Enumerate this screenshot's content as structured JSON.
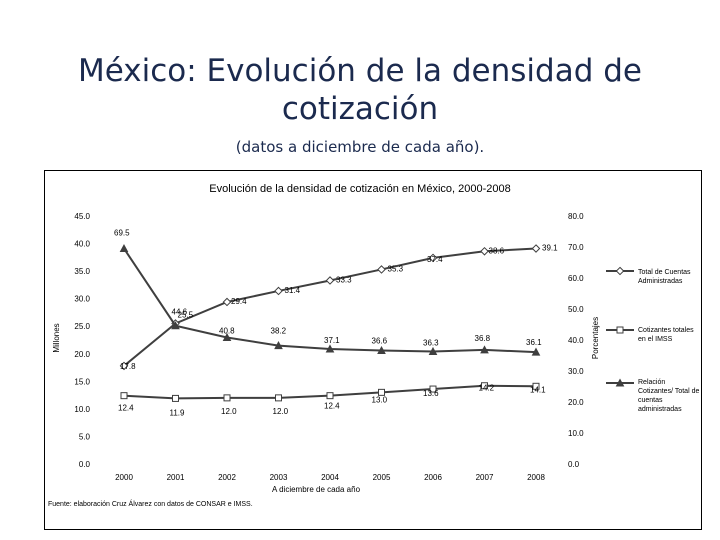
{
  "slide": {
    "title": "México: Evolución de la densidad de cotización",
    "subtitle": "(datos a diciembre de cada año)."
  },
  "chart_data": {
    "type": "line",
    "title": "Evolución de la densidad de cotización en México, 2000-2008",
    "xlabel": "A diciembre de cada año",
    "ylabel_left": "Millones",
    "ylabel_right": "Porcentajes",
    "categories": [
      "2000",
      "2001",
      "2002",
      "2003",
      "2004",
      "2005",
      "2006",
      "2007",
      "2008"
    ],
    "y_left_ticks": [
      "0.0",
      "5.0",
      "10.0",
      "15.0",
      "20.0",
      "25.0",
      "30.0",
      "35.0",
      "40.0",
      "45.0"
    ],
    "y_right_ticks": [
      "0.0",
      "10.0",
      "20.0",
      "30.0",
      "40.0",
      "50.0",
      "60.0",
      "70.0",
      "80.0"
    ],
    "ylim_left": [
      0,
      45
    ],
    "ylim_right": [
      0,
      80
    ],
    "series": [
      {
        "name": "Total de Cuentas Administradas",
        "axis": "left",
        "marker": "diamond",
        "values": [
          17.8,
          25.5,
          29.4,
          31.4,
          33.3,
          35.3,
          37.4,
          38.6,
          39.1
        ],
        "labels": [
          "17.8",
          "25.5",
          "29.4",
          "31.4",
          "33.3",
          "35.3",
          "37.4",
          "38.6",
          "39.1"
        ]
      },
      {
        "name": "Cotizantes totales en el IMSS",
        "axis": "left",
        "marker": "square",
        "values": [
          12.4,
          11.9,
          12.0,
          12.0,
          12.4,
          13.0,
          13.6,
          14.2,
          14.1
        ],
        "labels": [
          "12.4",
          "11.9",
          "12.0",
          "12.0",
          "12.4",
          "13.0",
          "13.6",
          "14.2",
          "14.1"
        ]
      },
      {
        "name": "Relación Cotizantes/ Total de cuentas administradas",
        "axis": "right",
        "marker": "triangle",
        "values": [
          69.5,
          44.6,
          40.8,
          38.2,
          37.1,
          36.6,
          36.3,
          36.8,
          36.1
        ],
        "labels": [
          "69.5",
          "44.6",
          "40.8",
          "38.2",
          "37.1",
          "36.6",
          "36.3",
          "36.8",
          "36.1"
        ]
      }
    ],
    "legend_position": "right"
  },
  "source_note": "Fuente: elaboración Cruz Álvarez con datos de CONSAR e IMSS.",
  "colors": {
    "line": "#3f3f3f",
    "marker_fill": "#ffffff",
    "title": "#1b2a4e"
  }
}
